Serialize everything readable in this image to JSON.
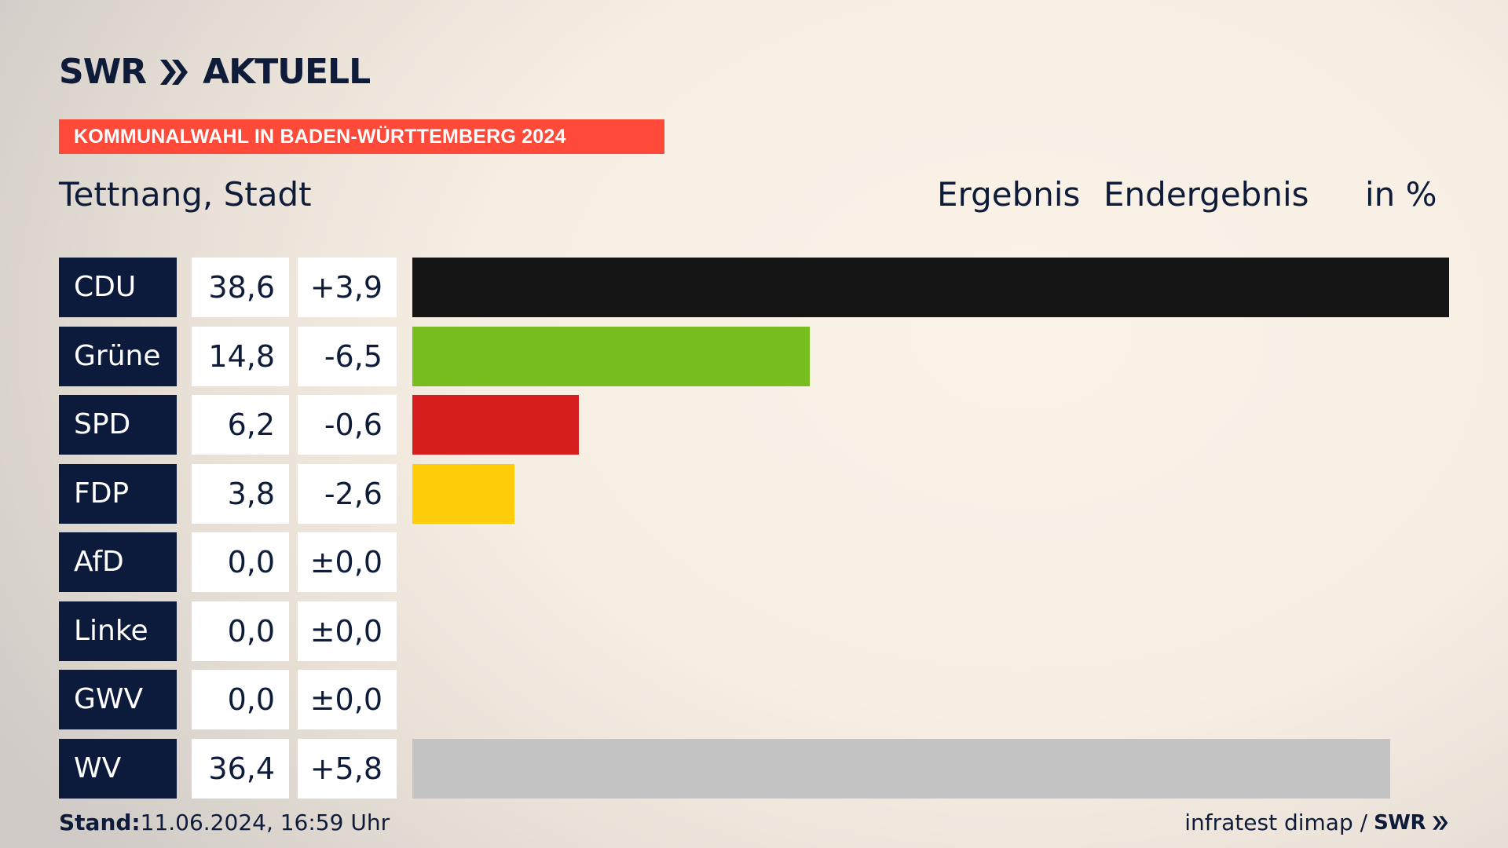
{
  "brand": {
    "logo_left": "SWR",
    "logo_right": "AKTUELL",
    "logo_icon": "double-chevron-icon"
  },
  "banner": "KOMMUNALWAHL IN BADEN-WÜRTTEMBERG 2024",
  "place": "Tettnang, Stadt",
  "header": {
    "ergebnis": "Ergebnis",
    "endergebnis": "Endergebnis",
    "unit": "in %"
  },
  "colors": {
    "party_label_bg": "#0c1a3b",
    "banner_bg": "#ff4a3a"
  },
  "chart_data": {
    "type": "bar",
    "title": "Kommunalwahl in Baden-Württemberg 2024 – Tettnang, Stadt",
    "unit": "%",
    "categories": [
      "CDU",
      "Grüne",
      "SPD",
      "FDP",
      "AfD",
      "Linke",
      "GWV",
      "WV"
    ],
    "values": [
      38.6,
      14.8,
      6.2,
      3.8,
      0.0,
      0.0,
      0.0,
      36.4
    ],
    "value_labels": [
      "38,6",
      "14,8",
      "6,2",
      "3,8",
      "0,0",
      "0,0",
      "0,0",
      "36,4"
    ],
    "diffs": [
      3.9,
      -6.5,
      -0.6,
      -2.6,
      0.0,
      0.0,
      0.0,
      5.8
    ],
    "diff_labels": [
      "+3,9",
      "-6,5",
      "-0,6",
      "-2,6",
      "±0,0",
      "±0,0",
      "±0,0",
      "+5,8"
    ],
    "colors": [
      "#151515",
      "#78bd1e",
      "#d71f1f",
      "#ffcc09",
      "#009ee0",
      "#be3075",
      "#6a7d3f",
      "#c4c4c4"
    ],
    "xlim": [
      0,
      38.6
    ]
  },
  "footer": {
    "stand_label": "Stand:",
    "stand_value": "11.06.2024, 16:59 Uhr",
    "source": "infratest dimap /",
    "source_logo": "SWR"
  }
}
